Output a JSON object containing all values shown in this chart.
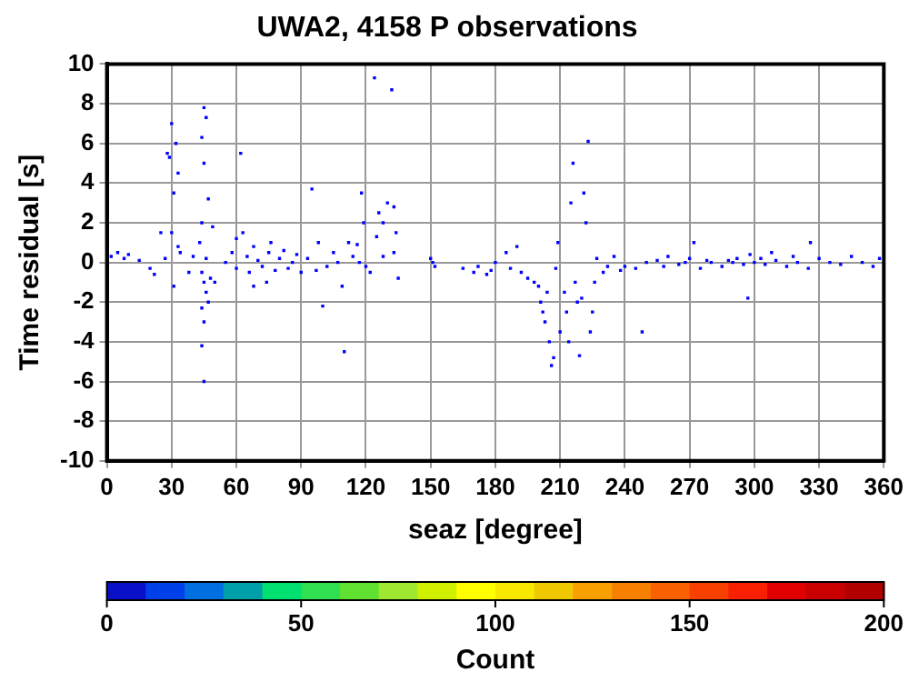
{
  "chart_data": {
    "type": "scatter",
    "title": "UWA2, 4158 P observations",
    "xlabel": "seaz [degree]",
    "ylabel": "Time residual [s]",
    "clabel": "Count",
    "xlim": [
      0,
      360
    ],
    "xticks": [
      0,
      30,
      60,
      90,
      120,
      150,
      180,
      210,
      240,
      270,
      300,
      330,
      360
    ],
    "ylim": [
      -10,
      10
    ],
    "yticks": [
      -10,
      -8,
      -6,
      -4,
      -2,
      0,
      2,
      4,
      6,
      8,
      10
    ],
    "clim": [
      0,
      200
    ],
    "cticks": [
      0,
      50,
      100,
      150,
      200
    ],
    "grid": true,
    "legend": false,
    "marker": "square",
    "x": [
      2,
      5,
      8,
      10,
      15,
      20,
      25,
      27,
      22,
      28,
      29,
      30,
      31,
      32,
      33,
      30,
      33,
      31,
      34,
      45,
      46,
      44,
      45,
      47,
      44,
      43,
      46,
      44,
      45,
      46,
      47,
      44,
      45,
      44,
      45,
      48,
      50,
      49,
      40,
      38,
      55,
      58,
      60,
      62,
      63,
      65,
      66,
      68,
      70,
      72,
      75,
      76,
      78,
      80,
      82,
      84,
      86,
      88,
      90,
      68,
      74,
      60,
      93,
      95,
      97,
      98,
      100,
      102,
      105,
      107,
      109,
      110,
      112,
      114,
      116,
      118,
      119,
      120,
      117,
      122,
      124,
      125,
      126,
      128,
      130,
      132,
      133,
      134,
      133,
      135,
      128,
      150,
      151,
      152,
      165,
      170,
      172,
      176,
      178,
      180,
      185,
      187,
      190,
      192,
      195,
      198,
      200,
      201,
      202,
      203,
      204,
      205,
      206,
      207,
      208,
      209,
      210,
      212,
      213,
      214,
      215,
      216,
      217,
      218,
      219,
      220,
      221,
      222,
      223,
      224,
      225,
      226,
      227,
      230,
      232,
      235,
      238,
      240,
      248,
      245,
      250,
      255,
      258,
      260,
      265,
      268,
      270,
      272,
      275,
      278,
      280,
      285,
      288,
      290,
      292,
      295,
      297,
      298,
      300,
      303,
      305,
      308,
      310,
      315,
      318,
      320,
      325,
      326,
      330,
      335,
      340,
      345,
      350,
      355,
      358
    ],
    "values": [
      0.3,
      0.5,
      0.2,
      0.4,
      0.1,
      -0.3,
      1.5,
      0.2,
      -0.6,
      5.5,
      5.3,
      7.0,
      3.5,
      6.0,
      4.5,
      1.5,
      0.8,
      -1.2,
      0.5,
      7.8,
      7.3,
      6.3,
      5.0,
      3.2,
      2.0,
      1.0,
      0.2,
      -0.5,
      -1.0,
      -1.5,
      -2.0,
      -2.3,
      -3.0,
      -4.2,
      -6.0,
      -0.8,
      -1.0,
      1.8,
      0.3,
      -0.5,
      0.0,
      0.5,
      -0.3,
      5.5,
      1.5,
      0.3,
      -0.5,
      0.8,
      0.1,
      -0.2,
      0.5,
      1.0,
      -0.4,
      0.2,
      0.6,
      -0.3,
      0.0,
      0.4,
      -0.5,
      -1.2,
      -1.0,
      1.2,
      0.2,
      3.7,
      -0.4,
      1.0,
      -2.2,
      -0.2,
      0.5,
      0.0,
      -1.2,
      -4.5,
      1.0,
      0.3,
      0.9,
      3.5,
      2.0,
      -0.2,
      0.0,
      -0.5,
      9.3,
      1.3,
      2.5,
      2.0,
      3.0,
      8.7,
      2.8,
      1.5,
      0.5,
      -0.8,
      0.3,
      0.2,
      0.0,
      -0.2,
      -0.3,
      -0.5,
      -0.2,
      -0.6,
      -0.4,
      0.0,
      0.5,
      -0.3,
      0.8,
      -0.5,
      -0.8,
      -1.0,
      -1.2,
      -2.0,
      -2.5,
      -3.0,
      -1.5,
      -4.0,
      -5.2,
      -4.8,
      -0.3,
      1.0,
      -3.5,
      -1.5,
      -2.5,
      -4.0,
      3.0,
      5.0,
      -1.0,
      -2.0,
      -4.7,
      -1.8,
      3.5,
      2.0,
      6.1,
      -3.5,
      -2.5,
      -1.0,
      0.2,
      -0.5,
      -0.2,
      0.3,
      -0.4,
      -0.2,
      -3.5,
      -0.3,
      0.0,
      0.1,
      -0.2,
      0.3,
      -0.1,
      0.0,
      0.2,
      1.0,
      -0.3,
      0.1,
      0.0,
      -0.2,
      0.1,
      0.0,
      0.2,
      -0.1,
      -1.8,
      0.4,
      0.0,
      0.2,
      -0.1,
      0.5,
      0.1,
      -0.2,
      0.3,
      0.0,
      -0.3,
      1.0,
      0.2,
      0.0,
      -0.1,
      0.3,
      0.0,
      -0.2,
      0.2
    ],
    "color": "#0000ff"
  }
}
